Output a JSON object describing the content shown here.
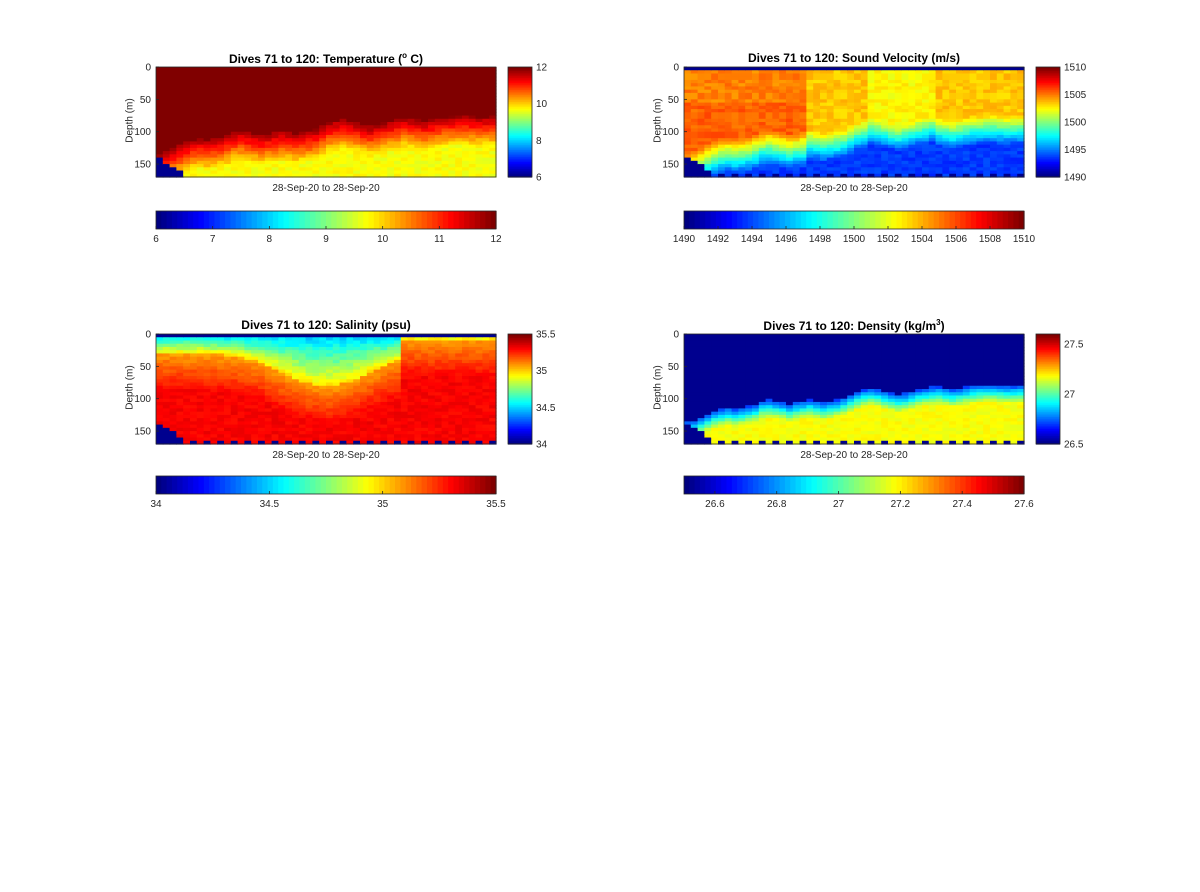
{
  "chart_data": [
    {
      "type": "heatmap",
      "title": "Dives 71 to 120: Temperature (",
      "title_sup": "o",
      "title_end": " C)",
      "ylabel": "Depth (m)",
      "xlabel": "28-Sep-20 to 28-Sep-20",
      "y_ticks": [
        0,
        50,
        100,
        150
      ],
      "ylim": [
        0,
        170
      ],
      "dives": [
        71,
        120
      ],
      "clim": [
        6,
        12
      ],
      "side_colorbar_ticks": [
        "6",
        "8",
        "10",
        "12"
      ],
      "bottom_colorbar_ticks": [
        "6",
        "7",
        "8",
        "9",
        "10",
        "11",
        "12"
      ],
      "warm_layer_bottom_m": [
        142,
        140,
        135,
        130,
        125,
        122,
        120,
        122,
        120,
        118,
        115,
        110,
        108,
        110,
        112,
        115,
        112,
        110,
        108,
        110,
        112,
        110,
        108,
        105,
        100,
        95,
        92,
        90,
        92,
        95,
        98,
        100,
        98,
        95,
        92,
        90,
        88,
        88,
        90,
        92,
        90,
        88,
        86,
        85,
        84,
        84,
        85,
        86,
        86,
        85
      ]
    },
    {
      "type": "heatmap",
      "title": "Dives 71 to 120: Sound Velocity (m/s)",
      "title_sup": "",
      "title_end": "",
      "ylabel": "Depth (m)",
      "xlabel": "28-Sep-20 to 28-Sep-20",
      "y_ticks": [
        0,
        50,
        100,
        150
      ],
      "ylim": [
        0,
        170
      ],
      "dives": [
        71,
        120
      ],
      "clim": [
        1490,
        1510
      ],
      "side_colorbar_ticks": [
        "1490",
        "1495",
        "1500",
        "1505",
        "1510"
      ],
      "bottom_colorbar_ticks": [
        "1490",
        "1492",
        "1494",
        "1496",
        "1498",
        "1500",
        "1502",
        "1504",
        "1506",
        "1508",
        "1510"
      ]
    },
    {
      "type": "heatmap",
      "title": "Dives 71 to 120: Salinity (psu)",
      "title_sup": "",
      "title_end": "",
      "ylabel": "Depth (m)",
      "xlabel": "28-Sep-20 to 28-Sep-20",
      "y_ticks": [
        0,
        50,
        100,
        150
      ],
      "ylim": [
        0,
        170
      ],
      "dives": [
        71,
        120
      ],
      "clim": [
        34,
        35.5
      ],
      "side_colorbar_ticks": [
        "34",
        "34.5",
        "35",
        "35.5"
      ],
      "bottom_colorbar_ticks": [
        "34",
        "34.5",
        "35",
        "35.5"
      ]
    },
    {
      "type": "heatmap",
      "title": "Dives 71 to 120: Density (kg/m",
      "title_sup": "3",
      "title_end": ")",
      "ylabel": "Depth (m)",
      "xlabel": "28-Sep-20 to 28-Sep-20",
      "y_ticks": [
        0,
        50,
        100,
        150
      ],
      "ylim": [
        0,
        170
      ],
      "dives": [
        71,
        120
      ],
      "clim": [
        26.5,
        27.6
      ],
      "side_colorbar_ticks": [
        "26.5",
        "27",
        "27.5"
      ],
      "bottom_colorbar_ticks": [
        "26.6",
        "26.8",
        "27",
        "27.2",
        "27.4",
        "27.6"
      ]
    }
  ],
  "colormap": "jet"
}
